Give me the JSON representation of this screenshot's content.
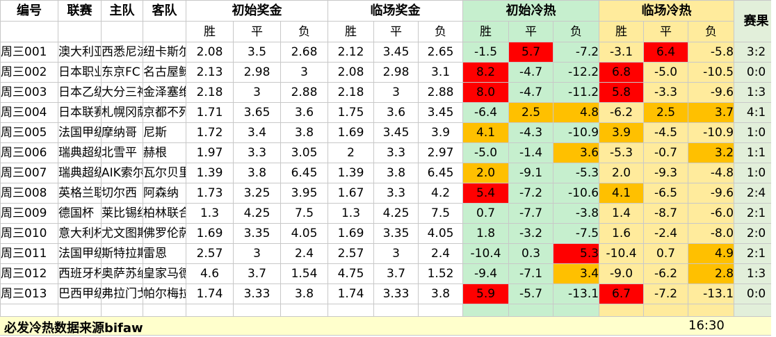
{
  "headers": {
    "id": "编号",
    "league": "联赛",
    "home": "主队",
    "away": "客队",
    "initial_odds": "初始奖金",
    "closing_odds": "临场奖金",
    "initial_heat": "初始冷热",
    "closing_heat": "临场冷热",
    "result": "赛果",
    "win": "胜",
    "draw": "平",
    "loss": "负"
  },
  "colors": {
    "cold_bg": "#c6efce",
    "hot_bg": "#ffeb9c",
    "result_bg": "#e2efda",
    "red_highlight": "#ff0000",
    "orange_highlight": "#ffc000",
    "footer_bg": "#ffffcc"
  },
  "rows": [
    {
      "id": "周三001",
      "league": "澳大利亚",
      "home": "西悉尼流",
      "away": "纽卡斯尔",
      "io": [
        "2.08",
        "3.5",
        "2.68"
      ],
      "co": [
        "2.12",
        "3.45",
        "2.65"
      ],
      "ih": [
        "-1.5",
        "5.7",
        "-7.2"
      ],
      "ch": [
        "-3.1",
        "6.4",
        "-5.8"
      ],
      "ihl": [
        "",
        "red",
        ""
      ],
      "chl": [
        "",
        "red",
        ""
      ],
      "result": "3:2"
    },
    {
      "id": "周三002",
      "league": "日本职业",
      "home": "东京FC",
      "away": "名古屋鲸",
      "io": [
        "2.13",
        "2.98",
        "3"
      ],
      "co": [
        "2.08",
        "2.98",
        "3.1"
      ],
      "ih": [
        "8.2",
        "-4.7",
        "-12.2"
      ],
      "ch": [
        "6.8",
        "-5.0",
        "-10.5"
      ],
      "ihl": [
        "red",
        "",
        ""
      ],
      "chl": [
        "red",
        "",
        ""
      ],
      "result": "0:0"
    },
    {
      "id": "周三003",
      "league": "日本乙级",
      "home": "大分三神",
      "away": "金泽塞维",
      "io": [
        "2.18",
        "3",
        "2.88"
      ],
      "co": [
        "2.18",
        "3",
        "2.88"
      ],
      "ih": [
        "8.0",
        "-4.7",
        "-11.2"
      ],
      "ch": [
        "5.8",
        "-3.3",
        "-9.6"
      ],
      "ihl": [
        "red",
        "",
        ""
      ],
      "chl": [
        "red",
        "",
        ""
      ],
      "result": "1:3"
    },
    {
      "id": "周三004",
      "league": "日本联赛",
      "home": "札幌冈萨",
      "away": "京都不死",
      "io": [
        "1.71",
        "3.65",
        "3.6"
      ],
      "co": [
        "1.75",
        "3.6",
        "3.45"
      ],
      "ih": [
        "-6.4",
        "2.5",
        "4.8"
      ],
      "ch": [
        "-6.2",
        "2.5",
        "3.7"
      ],
      "ihl": [
        "",
        "orange",
        "orange"
      ],
      "chl": [
        "",
        "orange",
        "orange"
      ],
      "result": "4:1"
    },
    {
      "id": "周三005",
      "league": "法国甲级",
      "home": "摩纳哥",
      "away": "尼斯",
      "io": [
        "1.72",
        "3.4",
        "3.8"
      ],
      "co": [
        "1.69",
        "3.45",
        "3.9"
      ],
      "ih": [
        "4.1",
        "-4.3",
        "-10.9"
      ],
      "ch": [
        "3.9",
        "-4.5",
        "-10.9"
      ],
      "ihl": [
        "orange",
        "",
        ""
      ],
      "chl": [
        "orange",
        "",
        ""
      ],
      "result": "1:0"
    },
    {
      "id": "周三006",
      "league": "瑞典超级",
      "home": "北雪平",
      "away": "赫根",
      "io": [
        "1.97",
        "3.3",
        "3.05"
      ],
      "co": [
        "2",
        "3.3",
        "2.97"
      ],
      "ih": [
        "-5.0",
        "-1.4",
        "3.6"
      ],
      "ch": [
        "-5.3",
        "-0.7",
        "3.2"
      ],
      "ihl": [
        "",
        "",
        "orange"
      ],
      "chl": [
        "",
        "",
        "orange"
      ],
      "result": "1:1"
    },
    {
      "id": "周三007",
      "league": "瑞典超级",
      "home": "AIK索尔",
      "away": "瓦尔贝里",
      "io": [
        "1.39",
        "3.8",
        "6.45"
      ],
      "co": [
        "1.39",
        "3.8",
        "6.45"
      ],
      "ih": [
        "2.0",
        "-9.1",
        "-5.3"
      ],
      "ch": [
        "2.0",
        "-9.3",
        "-4.8"
      ],
      "ihl": [
        "orange",
        "",
        ""
      ],
      "chl": [
        "",
        "",
        ""
      ],
      "result": "1:0"
    },
    {
      "id": "周三008",
      "league": "英格兰联",
      "home": "切尔西",
      "away": "阿森纳",
      "io": [
        "1.73",
        "3.25",
        "3.95"
      ],
      "co": [
        "1.67",
        "3.3",
        "4.2"
      ],
      "ih": [
        "5.4",
        "-7.2",
        "-10.6"
      ],
      "ch": [
        "4.1",
        "-6.5",
        "-9.6"
      ],
      "ihl": [
        "red",
        "",
        ""
      ],
      "chl": [
        "orange",
        "",
        ""
      ],
      "result": "2:4"
    },
    {
      "id": "周三009",
      "league": "德国杯",
      "home": "莱比锡红",
      "away": "柏林联合",
      "io": [
        "1.3",
        "4.25",
        "7.5"
      ],
      "co": [
        "1.3",
        "4.25",
        "7.5"
      ],
      "ih": [
        "0.7",
        "-7.7",
        "-3.8"
      ],
      "ch": [
        "1.4",
        "-8.7",
        "-6.0"
      ],
      "ihl": [
        "",
        "",
        ""
      ],
      "chl": [
        "",
        "",
        ""
      ],
      "result": "2:1"
    },
    {
      "id": "周三010",
      "league": "意大利杯",
      "home": "尤文图斯",
      "away": "佛罗伦萨",
      "io": [
        "1.69",
        "3.35",
        "4.05"
      ],
      "co": [
        "1.69",
        "3.35",
        "4.05"
      ],
      "ih": [
        "1.8",
        "-3.2",
        "-7.5"
      ],
      "ch": [
        "1.6",
        "-2.4",
        "-8.0"
      ],
      "ihl": [
        "",
        "",
        ""
      ],
      "chl": [
        "",
        "",
        ""
      ],
      "result": "2:0"
    },
    {
      "id": "周三011",
      "league": "法国甲级",
      "home": "斯特拉斯",
      "away": "雷恩",
      "io": [
        "2.57",
        "3",
        "2.4"
      ],
      "co": [
        "2.57",
        "3",
        "2.4"
      ],
      "ih": [
        "-10.4",
        "0.3",
        "5.3"
      ],
      "ch": [
        "-10.4",
        "0.7",
        "4.9"
      ],
      "ihl": [
        "",
        "",
        "red"
      ],
      "chl": [
        "",
        "",
        "orange"
      ],
      "result": "2:1"
    },
    {
      "id": "周三012",
      "league": "西班牙杯",
      "home": "奥萨苏纳",
      "away": "皇家马德",
      "io": [
        "4.6",
        "3.7",
        "1.54"
      ],
      "co": [
        "4.75",
        "3.7",
        "1.52"
      ],
      "ih": [
        "-9.4",
        "-7.1",
        "3.4"
      ],
      "ch": [
        "-9.0",
        "-6.2",
        "2.8"
      ],
      "ihl": [
        "",
        "",
        "orange"
      ],
      "chl": [
        "",
        "",
        "orange"
      ],
      "result": "1:3"
    },
    {
      "id": "周三013",
      "league": "巴西甲级",
      "home": "弗拉门戈",
      "away": "帕尔梅拉",
      "io": [
        "1.74",
        "3.33",
        "3.8"
      ],
      "co": [
        "1.74",
        "3.33",
        "3.8"
      ],
      "ih": [
        "5.9",
        "-5.7",
        "-13.1"
      ],
      "ch": [
        "6.7",
        "-7.2",
        "-13.1"
      ],
      "ihl": [
        "red",
        "",
        ""
      ],
      "chl": [
        "red",
        "",
        ""
      ],
      "result": "0:0"
    }
  ],
  "footer": {
    "source": "必发冷热数据来源bifaw",
    "time": "16:30"
  }
}
